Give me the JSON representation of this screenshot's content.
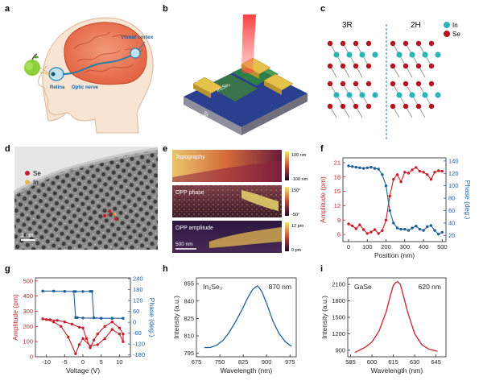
{
  "panel_letters": [
    "a",
    "b",
    "c",
    "d",
    "e",
    "f",
    "g",
    "h",
    "i"
  ],
  "panel_a": {
    "visual_cortex": "Visual cortex",
    "retina": "Retina",
    "optic_nerve": "Optic nerve"
  },
  "panel_b": {
    "gase": "GaSe",
    "sio2": "SiO",
    "sio2_sub": "2",
    "in2se3": "In₂Se₃",
    "si": "Si"
  },
  "panel_c": {
    "label_3r": "3R",
    "label_2h": "2H",
    "legend": [
      {
        "label": "In",
        "color": "#2bb3b8"
      },
      {
        "label": "Se",
        "color": "#b3141e"
      }
    ]
  },
  "panel_d": {
    "legend_se": "Se",
    "legend_in": "In",
    "scale": "1 nm"
  },
  "panel_e": {
    "maps": [
      {
        "title": "Topography",
        "scale_top": "100 nm",
        "scale_bottom": "-100 nm"
      },
      {
        "title": "OPP phase",
        "scale_top": "150°",
        "scale_bottom": "-50°"
      },
      {
        "title": "OPP amplitude",
        "scale_top": "12 pm",
        "scale_bottom": "0 pm"
      }
    ],
    "scalebar": "500 nm"
  },
  "colors": {
    "red": "#c8202b",
    "blue": "#1f5f9c",
    "teal": "#2bb3b8"
  },
  "chart_data": [
    {
      "id": "f",
      "type": "line",
      "xlabel": "Position (nm)",
      "ylabel_left": "Amplitude (pm)",
      "ylabel_right": "Phase (deg.)",
      "xlim": [
        -30,
        520
      ],
      "xticks": [
        0,
        100,
        200,
        300,
        400,
        500
      ],
      "ylim_left": [
        4.5,
        22
      ],
      "yticks_left": [
        6,
        9,
        12,
        15,
        18,
        21
      ],
      "ylim_right": [
        10,
        145
      ],
      "yticks_right": [
        20,
        40,
        60,
        80,
        100,
        120,
        140
      ],
      "series": [
        {
          "name": "Amplitude",
          "axis": "left",
          "color": "#c8202b",
          "x": [
            0,
            20,
            40,
            60,
            80,
            100,
            120,
            140,
            160,
            180,
            200,
            220,
            240,
            260,
            280,
            300,
            320,
            340,
            360,
            380,
            400,
            420,
            440,
            460,
            480,
            500
          ],
          "y": [
            8.2,
            7.8,
            7.2,
            8.0,
            7.0,
            6.2,
            6.5,
            7.0,
            6.2,
            6.8,
            9.0,
            14.0,
            17.5,
            18.5,
            17.0,
            19.0,
            18.8,
            19.5,
            20.0,
            19.2,
            19.0,
            18.5,
            17.5,
            19.0,
            19.3,
            19.2
          ]
        },
        {
          "name": "Phase",
          "axis": "right",
          "color": "#1f5f9c",
          "x": [
            0,
            20,
            40,
            60,
            80,
            100,
            120,
            140,
            160,
            180,
            200,
            220,
            240,
            260,
            280,
            300,
            320,
            340,
            360,
            380,
            400,
            420,
            440,
            460,
            480,
            500
          ],
          "y": [
            132,
            131,
            130,
            129,
            128,
            129,
            130,
            128,
            127,
            118,
            100,
            60,
            40,
            32,
            30,
            30,
            28,
            32,
            35,
            30,
            28,
            34,
            36,
            28,
            22,
            25
          ]
        }
      ]
    },
    {
      "id": "g",
      "type": "line",
      "xlabel": "Voltage (V)",
      "ylabel_left": "Amplitude (pm)",
      "ylabel_right": "Phase (deg.)",
      "xlim": [
        -13,
        13
      ],
      "xticks": [
        -10,
        -5,
        0,
        5,
        10
      ],
      "ylim_left": [
        0,
        520
      ],
      "yticks_left": [
        0,
        100,
        200,
        300,
        400,
        500
      ],
      "ylim_right": [
        -190,
        245
      ],
      "yticks_right": [
        -180,
        -120,
        -60,
        0,
        60,
        120,
        180,
        240
      ],
      "series": [
        {
          "name": "Amplitude",
          "axis": "left",
          "color": "#c8202b",
          "x": [
            -11,
            -9,
            -7,
            -5,
            -3,
            -1,
            0,
            1,
            2,
            3,
            4,
            6,
            8,
            10,
            11,
            11,
            10,
            8,
            6,
            4,
            2,
            0,
            -1,
            -2,
            -4,
            -6,
            -8,
            -10,
            -11
          ],
          "y": [
            250,
            245,
            240,
            230,
            215,
            195,
            190,
            120,
            60,
            110,
            150,
            200,
            230,
            190,
            150,
            100,
            150,
            180,
            120,
            80,
            70,
            120,
            80,
            20,
            130,
            200,
            230,
            245,
            250
          ]
        },
        {
          "name": "Phase",
          "axis": "right",
          "color": "#1f5f9c",
          "x": [
            -11,
            -8,
            -5,
            -2,
            0,
            2,
            2.5,
            3,
            5,
            8,
            11,
            11,
            8,
            5,
            0,
            -1.5,
            -2,
            -2.5,
            -5,
            -8,
            -11
          ],
          "y": [
            172,
            172,
            171,
            170,
            170,
            171,
            171,
            25,
            22,
            22,
            22,
            22,
            22,
            22,
            24,
            26,
            26,
            170,
            171,
            172,
            172
          ]
        }
      ]
    },
    {
      "id": "h",
      "type": "line",
      "title": "In₂Se₃",
      "annotation": "870 nm",
      "xlabel": "Wavelength (nm)",
      "ylabel": "Intensity (a.u.)",
      "xlim": [
        675,
        995
      ],
      "xticks": [
        675,
        750,
        825,
        900,
        975
      ],
      "ylim": [
        792,
        860
      ],
      "yticks": [
        795,
        810,
        825,
        840,
        855
      ],
      "series": [
        {
          "name": "PL",
          "color": "#1f5f9c",
          "x": [
            700,
            720,
            740,
            760,
            780,
            800,
            820,
            840,
            855,
            865,
            870,
            875,
            885,
            900,
            920,
            940,
            960,
            980
          ],
          "y": [
            800,
            800,
            802,
            806,
            813,
            822,
            832,
            843,
            850,
            852,
            853,
            852,
            848,
            838,
            823,
            812,
            805,
            801
          ]
        }
      ]
    },
    {
      "id": "i",
      "type": "line",
      "title": "GaSe",
      "annotation": "620 nm",
      "xlabel": "Wavelength (nm)",
      "ylabel": "Intensity (a.u.)",
      "xlim": [
        583,
        652
      ],
      "xticks": [
        585,
        600,
        615,
        630,
        645
      ],
      "ylim": [
        780,
        2220
      ],
      "yticks": [
        900,
        1200,
        1500,
        1800,
        2100
      ],
      "series": [
        {
          "name": "PL",
          "color": "#c8202b",
          "x": [
            588,
            595,
            600,
            605,
            610,
            613,
            615,
            617,
            618,
            620,
            622,
            625,
            630,
            635,
            640,
            646
          ],
          "y": [
            860,
            950,
            1050,
            1250,
            1600,
            1900,
            2080,
            2140,
            2150,
            2100,
            1900,
            1600,
            1200,
            1000,
            920,
            880
          ]
        }
      ]
    }
  ]
}
